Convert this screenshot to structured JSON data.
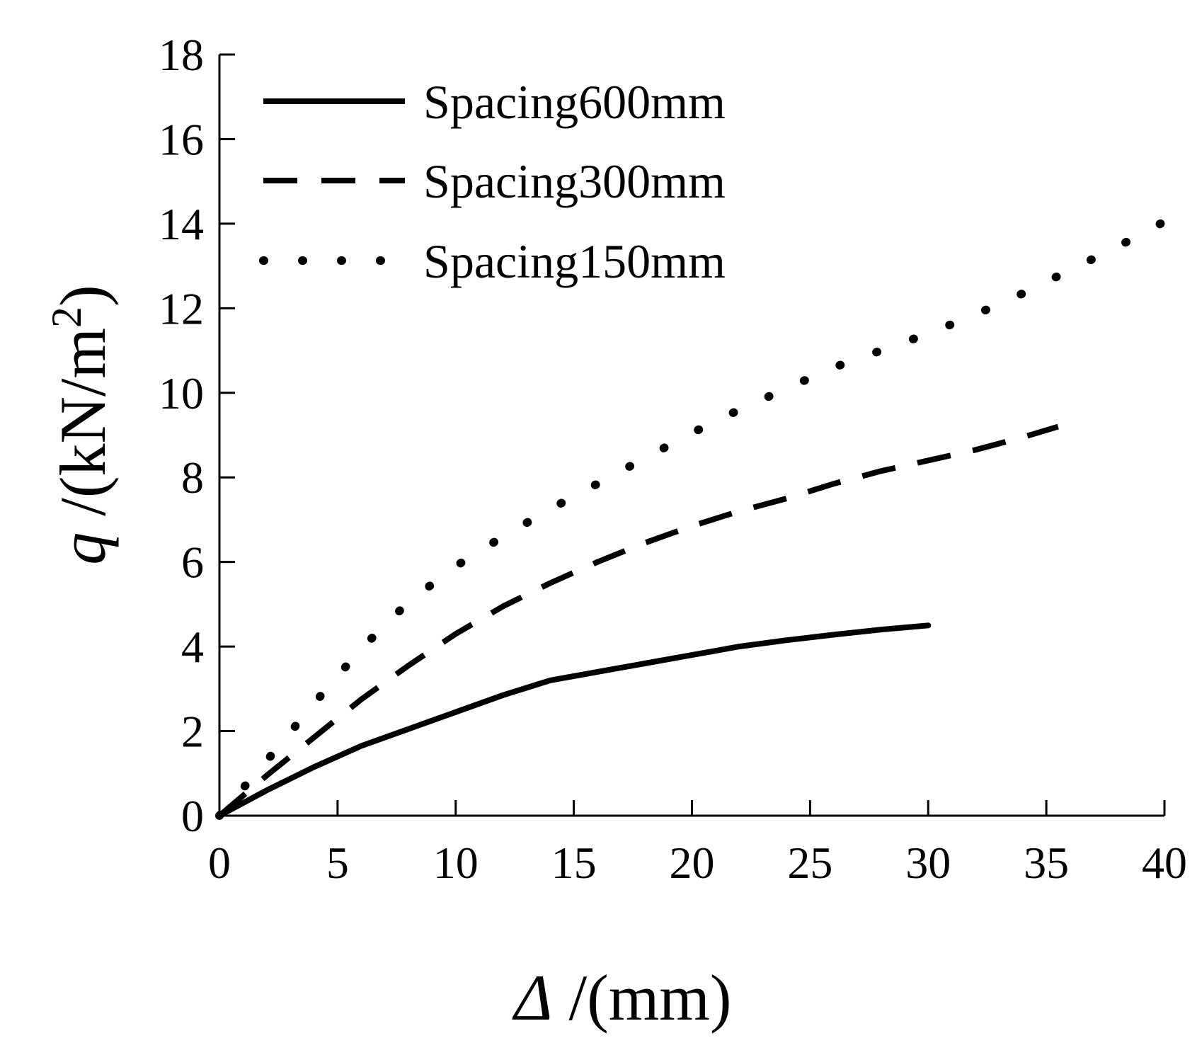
{
  "chart_data": {
    "type": "line",
    "xlabel_symbol": "Δ",
    "xlabel_unit": " /(mm)",
    "ylabel_symbol": "q",
    "ylabel_unit": " /(kN/m",
    "ylabel_unit_sup": "2",
    "ylabel_unit_close": ")",
    "xlim": [
      0,
      40
    ],
    "ylim": [
      0,
      18
    ],
    "x_ticks": [
      0,
      5,
      10,
      15,
      20,
      25,
      30,
      35,
      40
    ],
    "y_ticks": [
      0,
      2,
      4,
      6,
      8,
      10,
      12,
      14,
      16,
      18
    ],
    "grid": false,
    "legend_position": "top-left",
    "series": [
      {
        "name": "Spacing600mm",
        "style": "solid",
        "color": "#000000",
        "x": [
          0,
          2,
          4,
          6,
          8,
          10,
          12,
          14,
          16,
          18,
          20,
          22,
          24,
          26,
          28,
          30
        ],
        "y": [
          0,
          0.6,
          1.15,
          1.65,
          2.05,
          2.45,
          2.85,
          3.2,
          3.4,
          3.6,
          3.8,
          4.0,
          4.15,
          4.28,
          4.4,
          4.5
        ]
      },
      {
        "name": "Spacing300mm",
        "style": "dashed",
        "color": "#000000",
        "x": [
          0,
          2,
          4,
          6,
          8,
          10,
          12,
          14,
          16,
          18,
          20,
          22,
          24,
          26,
          28,
          30,
          32,
          34,
          35.5
        ],
        "y": [
          0,
          0.95,
          1.85,
          2.75,
          3.55,
          4.3,
          4.95,
          5.5,
          6.0,
          6.45,
          6.85,
          7.2,
          7.5,
          7.85,
          8.15,
          8.4,
          8.65,
          8.95,
          9.2
        ]
      },
      {
        "name": "Spacing150mm",
        "style": "dotted",
        "color": "#000000",
        "x": [
          0,
          2,
          4,
          6,
          8,
          10,
          12,
          14,
          16,
          18,
          20,
          22,
          24,
          26,
          28,
          30,
          32,
          34,
          36,
          38,
          40
        ],
        "y": [
          0,
          1.3,
          2.65,
          3.95,
          5.05,
          5.9,
          6.6,
          7.25,
          7.85,
          8.45,
          9.05,
          9.6,
          10.1,
          10.6,
          11.0,
          11.4,
          11.85,
          12.35,
          12.9,
          13.45,
          14.05
        ]
      }
    ]
  }
}
